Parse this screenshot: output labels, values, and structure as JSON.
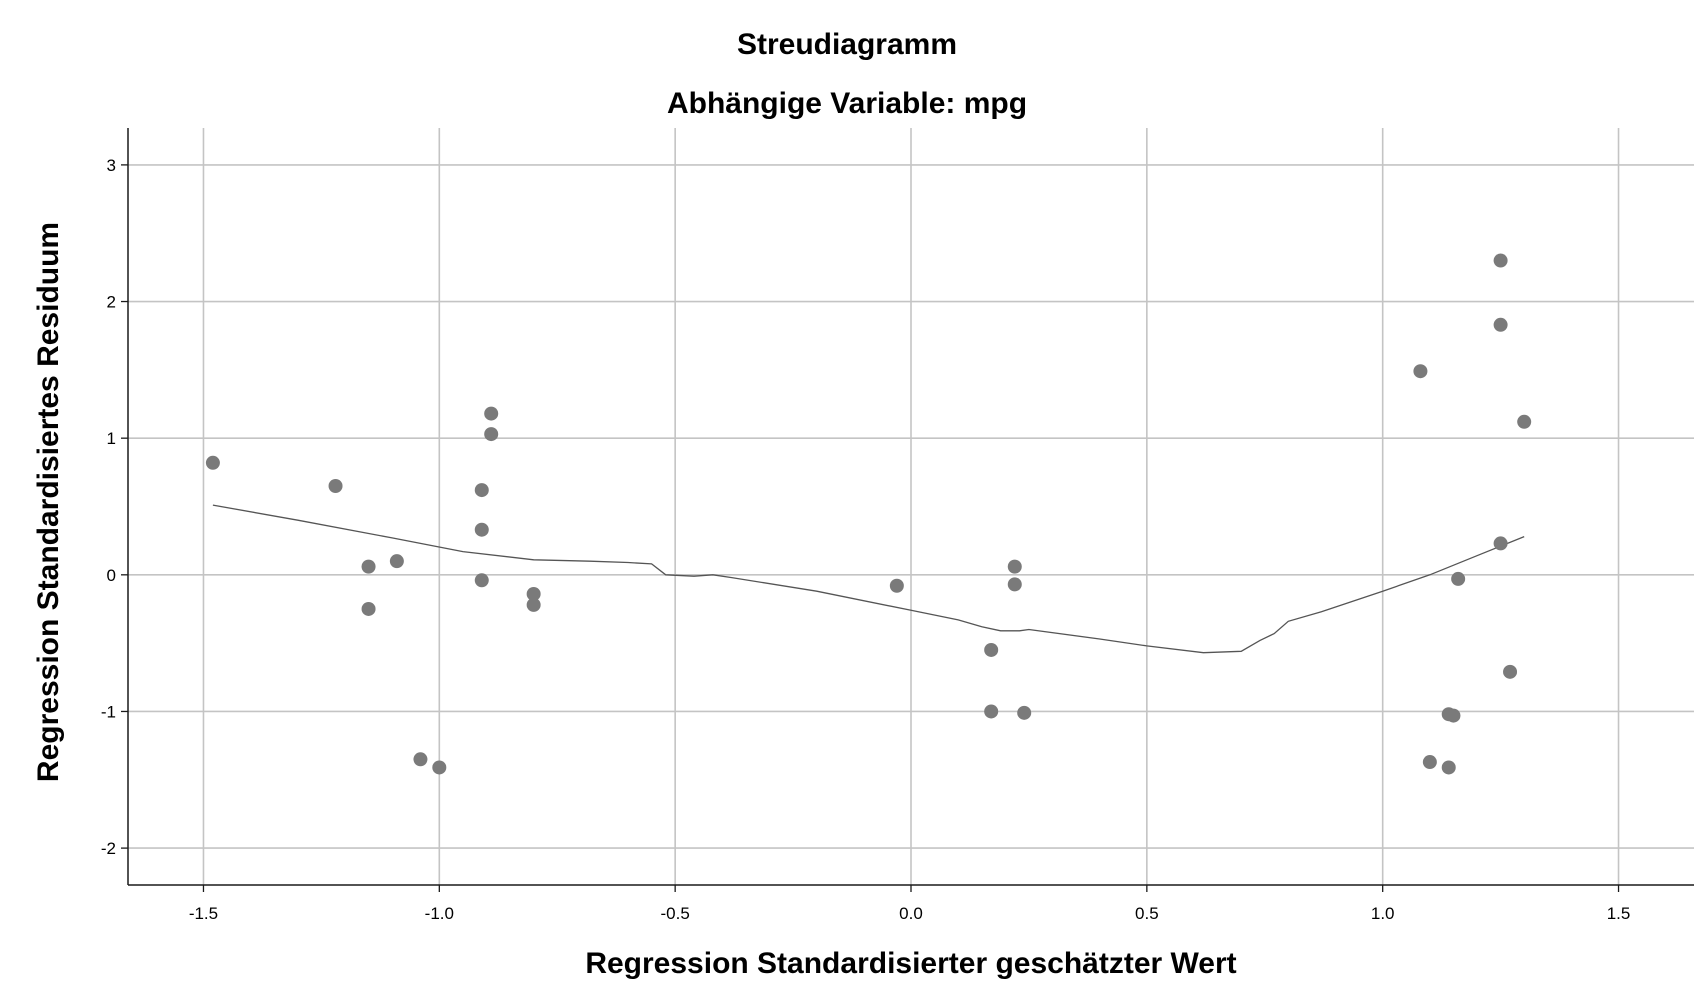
{
  "colors": {
    "point": "#7a7a7a",
    "grid": "#c4c4c4",
    "axis": "#1a1a1a",
    "fit_line": "#555555",
    "background": "#ffffff"
  },
  "chart_data": {
    "type": "scatter",
    "title": "Streudiagramm",
    "subtitle": "Abhängige Variable: mpg",
    "xlabel": "Regression Standardisierter geschätzter Wert",
    "ylabel": "Regression Standardisiertes Residuum",
    "xlim": [
      -1.66,
      1.66
    ],
    "ylim": [
      -2.27,
      3.27
    ],
    "x_ticks": [
      -1.5,
      -1.0,
      -0.5,
      0.0,
      0.5,
      1.0,
      1.5
    ],
    "x_tick_labels": [
      "-1.5",
      "-1.0",
      "-0.5",
      "0.0",
      "0.5",
      "1.0",
      "1.5"
    ],
    "y_ticks": [
      -2,
      -1,
      0,
      1,
      2,
      3
    ],
    "y_tick_labels": [
      "-2",
      "-1",
      "0",
      "1",
      "2",
      "3"
    ],
    "grid": true,
    "legend": "none",
    "points": [
      {
        "x": -1.48,
        "y": 0.82
      },
      {
        "x": -1.22,
        "y": 0.65
      },
      {
        "x": -1.15,
        "y": 0.06
      },
      {
        "x": -1.15,
        "y": -0.25
      },
      {
        "x": -1.09,
        "y": 0.1
      },
      {
        "x": -1.04,
        "y": -1.35
      },
      {
        "x": -1.0,
        "y": -1.41
      },
      {
        "x": -0.91,
        "y": 0.62
      },
      {
        "x": -0.91,
        "y": 0.33
      },
      {
        "x": -0.91,
        "y": -0.04
      },
      {
        "x": -0.89,
        "y": 1.18
      },
      {
        "x": -0.89,
        "y": 1.03
      },
      {
        "x": -0.8,
        "y": -0.14
      },
      {
        "x": -0.8,
        "y": -0.22
      },
      {
        "x": -0.03,
        "y": -0.08
      },
      {
        "x": 0.17,
        "y": -0.55
      },
      {
        "x": 0.17,
        "y": -1.0
      },
      {
        "x": 0.22,
        "y": 0.06
      },
      {
        "x": 0.22,
        "y": -0.07
      },
      {
        "x": 0.24,
        "y": -1.01
      },
      {
        "x": 1.08,
        "y": 1.49
      },
      {
        "x": 1.1,
        "y": -1.37
      },
      {
        "x": 1.14,
        "y": -1.41
      },
      {
        "x": 1.14,
        "y": -1.02
      },
      {
        "x": 1.15,
        "y": -1.03
      },
      {
        "x": 1.16,
        "y": -0.03
      },
      {
        "x": 1.25,
        "y": 2.3
      },
      {
        "x": 1.25,
        "y": 1.83
      },
      {
        "x": 1.25,
        "y": 0.23
      },
      {
        "x": 1.27,
        "y": -0.71
      },
      {
        "x": 1.3,
        "y": 1.12
      }
    ],
    "fit_line": [
      {
        "x": -1.48,
        "y": 0.51
      },
      {
        "x": -1.3,
        "y": 0.4
      },
      {
        "x": -1.1,
        "y": 0.27
      },
      {
        "x": -0.95,
        "y": 0.17
      },
      {
        "x": -0.8,
        "y": 0.11
      },
      {
        "x": -0.68,
        "y": 0.1
      },
      {
        "x": -0.6,
        "y": 0.09
      },
      {
        "x": -0.55,
        "y": 0.08
      },
      {
        "x": -0.52,
        "y": 0.0
      },
      {
        "x": -0.46,
        "y": -0.01
      },
      {
        "x": -0.42,
        "y": 0.0
      },
      {
        "x": -0.38,
        "y": -0.02
      },
      {
        "x": -0.2,
        "y": -0.12
      },
      {
        "x": 0.0,
        "y": -0.26
      },
      {
        "x": 0.1,
        "y": -0.33
      },
      {
        "x": 0.15,
        "y": -0.38
      },
      {
        "x": 0.19,
        "y": -0.41
      },
      {
        "x": 0.23,
        "y": -0.41
      },
      {
        "x": 0.25,
        "y": -0.4
      },
      {
        "x": 0.4,
        "y": -0.47
      },
      {
        "x": 0.5,
        "y": -0.52
      },
      {
        "x": 0.62,
        "y": -0.57
      },
      {
        "x": 0.7,
        "y": -0.56
      },
      {
        "x": 0.74,
        "y": -0.48
      },
      {
        "x": 0.77,
        "y": -0.43
      },
      {
        "x": 0.8,
        "y": -0.34
      },
      {
        "x": 0.87,
        "y": -0.27
      },
      {
        "x": 1.0,
        "y": -0.12
      },
      {
        "x": 1.1,
        "y": 0.0
      },
      {
        "x": 1.2,
        "y": 0.14
      },
      {
        "x": 1.3,
        "y": 0.28
      }
    ]
  }
}
